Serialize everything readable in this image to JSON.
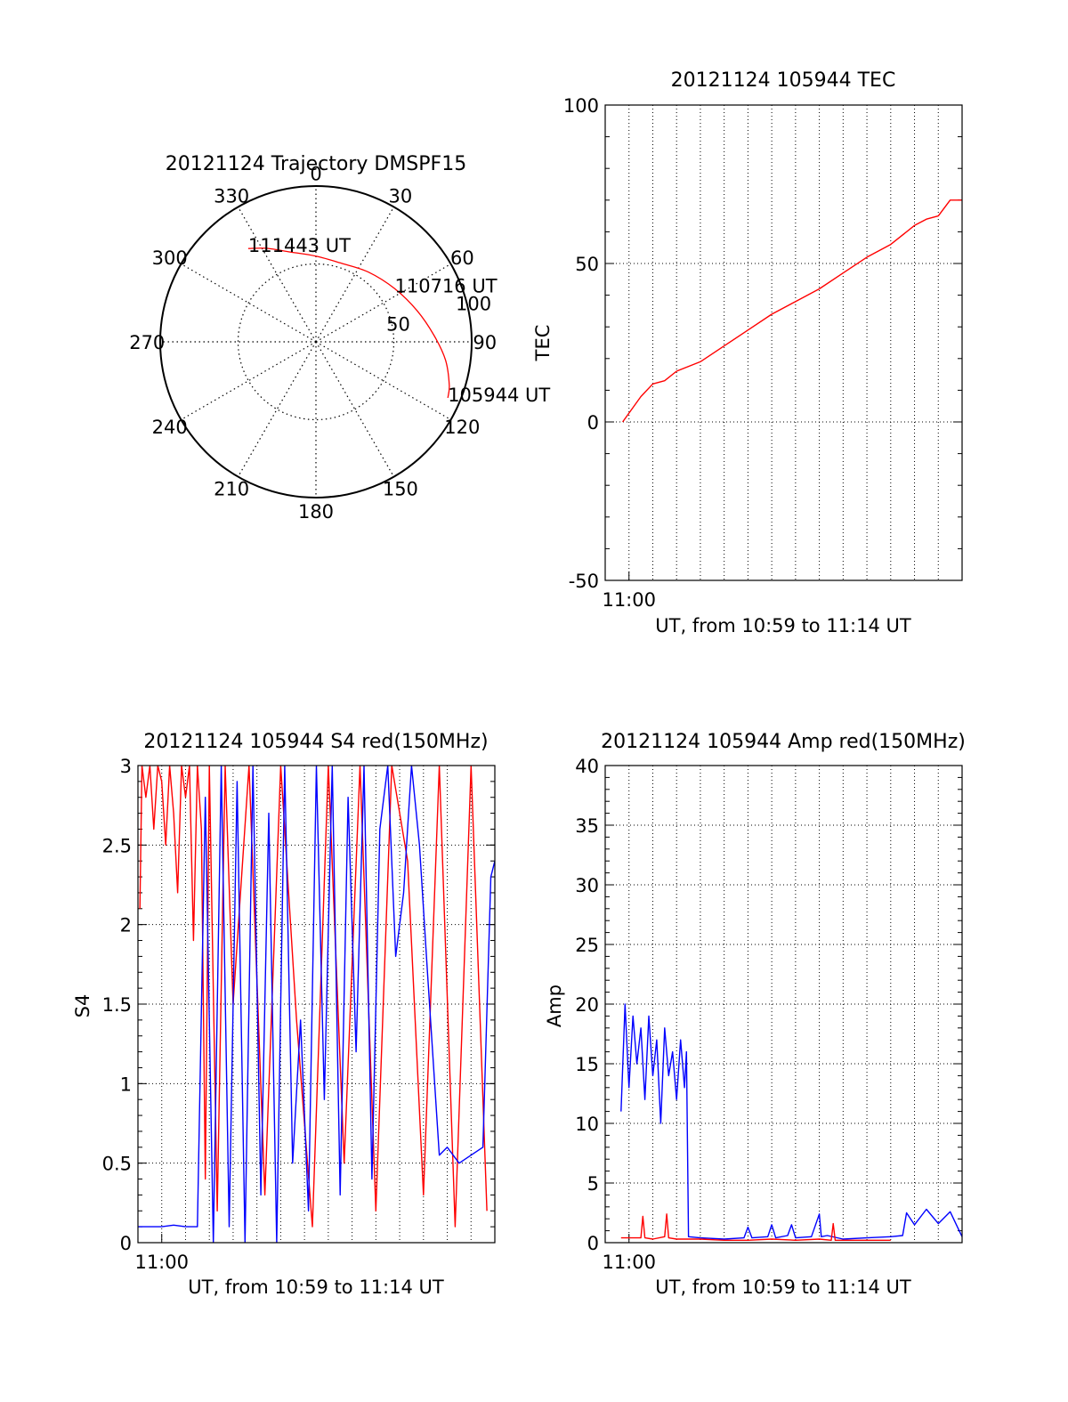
{
  "chart_data": [
    {
      "id": "trajectory",
      "type": "polar",
      "title": "20121124 Trajectory DMSPF15",
      "azimuth_labels": [
        {
          "az": 0,
          "text": "0"
        },
        {
          "az": 30,
          "text": "30"
        },
        {
          "az": 60,
          "text": "60"
        },
        {
          "az": 90,
          "text": "90"
        },
        {
          "az": 120,
          "text": "120"
        },
        {
          "az": 150,
          "text": "150"
        },
        {
          "az": 180,
          "text": "180"
        },
        {
          "az": 210,
          "text": "210"
        },
        {
          "az": 240,
          "text": "240"
        },
        {
          "az": 270,
          "text": "270"
        },
        {
          "az": 300,
          "text": "300"
        },
        {
          "az": 330,
          "text": "330"
        }
      ],
      "radial_labels": [
        {
          "r": 50,
          "text": "50"
        },
        {
          "r": 100,
          "text": "100"
        }
      ],
      "r_max": 100,
      "track_color": "#ff0000",
      "track": [
        {
          "az": 324.0,
          "r": 74.0
        },
        {
          "az": 332.0,
          "r": 68.0
        },
        {
          "az": 344.0,
          "r": 60.0
        },
        {
          "az": 0.0,
          "r": 55.0
        },
        {
          "az": 18.0,
          "r": 53.0
        },
        {
          "az": 37.0,
          "r": 56.0
        },
        {
          "az": 56.0,
          "r": 61.0
        },
        {
          "az": 73.0,
          "r": 68.0
        },
        {
          "az": 87.0,
          "r": 76.0
        },
        {
          "az": 98.0,
          "r": 84.0
        },
        {
          "az": 108.0,
          "r": 90.0
        },
        {
          "az": 113.0,
          "r": 92.0
        }
      ],
      "annotations": [
        {
          "text": "111443 UT",
          "az": 324.0,
          "r": 74.0
        },
        {
          "text": "110716 UT",
          "az": 56.0,
          "r": 61.0
        },
        {
          "text": "105944 UT",
          "az": 113.0,
          "r": 92.0
        }
      ]
    },
    {
      "id": "tec",
      "type": "line",
      "title": "20121124 105944 TEC",
      "xlabel": "UT, from 10:59 to 11:14 UT",
      "ylabel": "TEC",
      "xlim": [
        "10:59:00",
        "11:14:00"
      ],
      "ylim": [
        -50,
        100
      ],
      "yticks": [
        -50,
        0,
        50,
        100
      ],
      "xticks": [
        {
          "t": "11:00:00",
          "label": "11:00"
        }
      ],
      "grid": true,
      "series": [
        {
          "color": "#ff0000",
          "x": [
            "10:59:44",
            "11:00:30",
            "11:01:00",
            "11:01:30",
            "11:02:00",
            "11:03:00",
            "11:04:00",
            "11:05:00",
            "11:06:00",
            "11:07:00",
            "11:08:00",
            "11:09:00",
            "11:10:00",
            "11:11:00",
            "11:12:00",
            "11:12:30",
            "11:13:00",
            "11:13:30",
            "11:14:00"
          ],
          "y": [
            0,
            8,
            12,
            13,
            16,
            19,
            24,
            29,
            34,
            38,
            42,
            47,
            52,
            56,
            62,
            64,
            65,
            70,
            70
          ]
        }
      ]
    },
    {
      "id": "s4",
      "type": "line",
      "title": "20121124 105944 S4 red(150MHz)",
      "xlabel": "UT, from 10:59 to 11:14 UT",
      "ylabel": "S4",
      "xlim": [
        "10:59:00",
        "11:14:00"
      ],
      "ylim": [
        0,
        3
      ],
      "yticks": [
        0,
        0.5,
        1,
        1.5,
        2,
        2.5,
        3
      ],
      "ytick_labels": [
        "0",
        "0.5",
        "1",
        "1.5",
        "2",
        "2.5",
        "3"
      ],
      "xticks": [
        {
          "t": "11:00:00",
          "label": "11:00"
        }
      ],
      "grid": true,
      "series": [
        {
          "color": "#ff0000",
          "x": [
            "10:59:05",
            "10:59:10",
            "10:59:20",
            "10:59:30",
            "10:59:40",
            "10:59:50",
            "11:00:00",
            "11:00:10",
            "11:00:20",
            "11:00:30",
            "11:00:40",
            "11:00:50",
            "11:01:00",
            "11:01:10",
            "11:01:20",
            "11:01:30",
            "11:01:40",
            "11:01:50",
            "11:02:00",
            "11:02:20",
            "11:02:40",
            "11:03:00",
            "11:03:40",
            "11:04:20",
            "11:05:00",
            "11:05:40",
            "11:06:20",
            "11:07:00",
            "11:07:40",
            "11:08:20",
            "11:09:00",
            "11:09:40",
            "11:10:20",
            "11:11:00",
            "11:11:40",
            "11:12:20",
            "11:13:00",
            "11:13:40"
          ],
          "y": [
            2.1,
            3.0,
            2.8,
            3.0,
            2.6,
            3.0,
            2.9,
            2.5,
            3.0,
            2.7,
            2.2,
            3.0,
            2.8,
            3.0,
            1.9,
            3.0,
            2.6,
            0.4,
            3.0,
            0.2,
            3.0,
            1.5,
            3.0,
            0.3,
            3.0,
            1.4,
            0.1,
            3.0,
            0.5,
            3.0,
            0.2,
            3.0,
            2.4,
            0.3,
            3.0,
            0.1,
            3.0,
            0.2
          ]
        },
        {
          "color": "#0000ff",
          "x": [
            "10:59:00",
            "10:59:30",
            "11:00:00",
            "11:00:30",
            "11:01:00",
            "11:01:30",
            "11:01:50",
            "11:02:10",
            "11:02:30",
            "11:02:50",
            "11:03:10",
            "11:03:30",
            "11:03:50",
            "11:04:10",
            "11:04:30",
            "11:04:50",
            "11:05:10",
            "11:05:30",
            "11:05:50",
            "11:06:10",
            "11:06:30",
            "11:06:50",
            "11:07:10",
            "11:07:30",
            "11:07:50",
            "11:08:10",
            "11:08:30",
            "11:08:50",
            "11:09:10",
            "11:09:30",
            "11:09:50",
            "11:10:10",
            "11:10:30",
            "11:10:50",
            "11:11:10",
            "11:11:40",
            "11:12:00",
            "11:12:30",
            "11:13:00",
            "11:13:30",
            "11:13:50",
            "11:14:00"
          ],
          "y": [
            0.1,
            0.1,
            0.1,
            0.11,
            0.1,
            0.1,
            2.8,
            0.0,
            3.0,
            0.1,
            2.9,
            0.0,
            3.0,
            0.3,
            2.7,
            0.0,
            3.0,
            0.5,
            1.4,
            0.2,
            3.0,
            0.9,
            3.0,
            0.3,
            2.8,
            1.2,
            3.0,
            0.4,
            2.6,
            3.0,
            1.8,
            2.2,
            3.0,
            2.5,
            1.7,
            0.55,
            0.6,
            0.5,
            0.55,
            0.6,
            2.3,
            2.4
          ]
        }
      ]
    },
    {
      "id": "amp",
      "type": "line",
      "title": "20121124 105944 Amp red(150MHz)",
      "xlabel": "UT, from 10:59 to 11:14 UT",
      "ylabel": "Amp",
      "xlim": [
        "10:59:00",
        "11:14:00"
      ],
      "ylim": [
        0,
        40
      ],
      "yticks": [
        0,
        5,
        10,
        15,
        20,
        25,
        30,
        35,
        40
      ],
      "xticks": [
        {
          "t": "11:00:00",
          "label": "11:00"
        }
      ],
      "grid": true,
      "series": [
        {
          "color": "#0000ff",
          "x": [
            "10:59:40",
            "10:59:50",
            "11:00:00",
            "11:00:10",
            "11:00:20",
            "11:00:30",
            "11:00:40",
            "11:00:50",
            "11:01:00",
            "11:01:10",
            "11:01:20",
            "11:01:30",
            "11:01:40",
            "11:01:50",
            "11:02:00",
            "11:02:10",
            "11:02:20",
            "11:02:25",
            "11:02:30",
            "11:03:00",
            "11:04:00",
            "11:04:50",
            "11:05:00",
            "11:05:10",
            "11:05:50",
            "11:06:00",
            "11:06:10",
            "11:06:40",
            "11:06:50",
            "11:07:00",
            "11:07:40",
            "11:08:00",
            "11:08:05",
            "11:08:20",
            "11:09:00",
            "11:10:00",
            "11:11:00",
            "11:11:30",
            "11:11:40",
            "11:12:00",
            "11:12:30",
            "11:13:00",
            "11:13:30",
            "11:13:50",
            "11:14:00"
          ],
          "y": [
            11,
            20,
            13,
            19,
            15,
            18,
            12,
            19,
            14,
            17,
            10,
            18,
            14,
            16,
            12,
            17,
            13,
            16,
            0.5,
            0.4,
            0.3,
            0.4,
            1.3,
            0.4,
            0.5,
            1.5,
            0.4,
            0.6,
            1.5,
            0.4,
            0.5,
            2.4,
            0.5,
            0.6,
            0.3,
            0.4,
            0.5,
            0.6,
            2.5,
            1.5,
            2.8,
            1.6,
            2.6,
            1.2,
            0.5
          ]
        },
        {
          "color": "#ff0000",
          "x": [
            "10:59:40",
            "11:00:30",
            "11:00:35",
            "11:00:40",
            "11:01:00",
            "11:01:30",
            "11:01:35",
            "11:01:40",
            "11:02:00",
            "11:02:30",
            "11:03:00",
            "11:04:00",
            "11:05:00",
            "11:06:00",
            "11:07:00",
            "11:08:00",
            "11:08:30",
            "11:08:35",
            "11:08:40",
            "11:09:00",
            "11:10:00",
            "11:11:00"
          ],
          "y": [
            0.4,
            0.4,
            2.2,
            0.4,
            0.3,
            0.5,
            2.4,
            0.4,
            0.3,
            0.3,
            0.3,
            0.2,
            0.2,
            0.3,
            0.2,
            0.3,
            0.2,
            1.6,
            0.2,
            0.2,
            0.2,
            0.2
          ]
        }
      ]
    }
  ]
}
